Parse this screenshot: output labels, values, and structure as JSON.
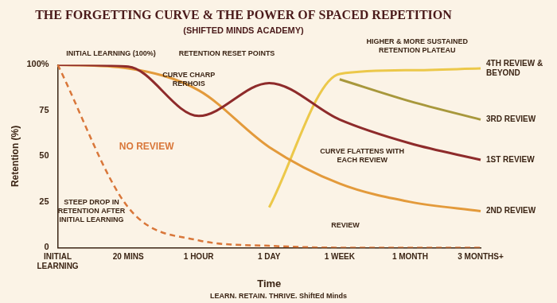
{
  "chart_data": {
    "type": "line",
    "title": "THE FORGETTING CURVE & THE POWER OF SPACED REPETITION",
    "subtitle": "(SHIFTED MINDS ACADEMY)",
    "x_label": "Time",
    "y_label": "Retention (%)",
    "categories": [
      "INITIAL LEARNING",
      "20 MINS",
      "1 HOUR",
      "1 DAY",
      "1 WEEK",
      "1 MONTH",
      "3 MONTHS+"
    ],
    "series": [
      {
        "name": "NO REVIEW",
        "color": "#d9773a",
        "line_style": "dashed",
        "values": [
          100,
          22,
          4,
          1,
          0,
          0,
          0
        ]
      },
      {
        "name": "1ST REVIEW",
        "color": "#8e2b2b",
        "line_style": "solid",
        "values": [
          100,
          99,
          72,
          90,
          70,
          57,
          48
        ]
      },
      {
        "name": "2ND REVIEW",
        "color": "#e39a3b",
        "line_style": "solid",
        "values": [
          100,
          98,
          86,
          55,
          35,
          25,
          20
        ]
      },
      {
        "name": "3RD REVIEW",
        "color": "#a8983c",
        "line_style": "solid",
        "values": [
          null,
          null,
          null,
          null,
          92,
          80,
          70
        ]
      },
      {
        "name": "4TH REVIEW & BEYOND",
        "color": "#ecc84a",
        "line_style": "solid",
        "values": [
          null,
          null,
          null,
          22,
          95,
          97,
          98
        ]
      }
    ],
    "ylim": [
      0,
      100
    ],
    "yticks": [
      0,
      25,
      50,
      75,
      {
        "value": 100,
        "label": "100%"
      }
    ],
    "grid": false,
    "annotations": [
      "INITIAL LEARNING (100%)",
      "RETENTION RESET POINTS",
      "HIGHER & MORE SUSTAINED RETENTION PLATEAU",
      "CURVE CHARP RERHOIS",
      "STEEP DROP IN RETENTION AFTER INITIAL LEARNING",
      "CURVE FLATTENS WITH EACH REVIEW",
      "REVIEW"
    ],
    "footer": "LEARN. RETAIN. THRIVE. ShiftEd Minds"
  }
}
